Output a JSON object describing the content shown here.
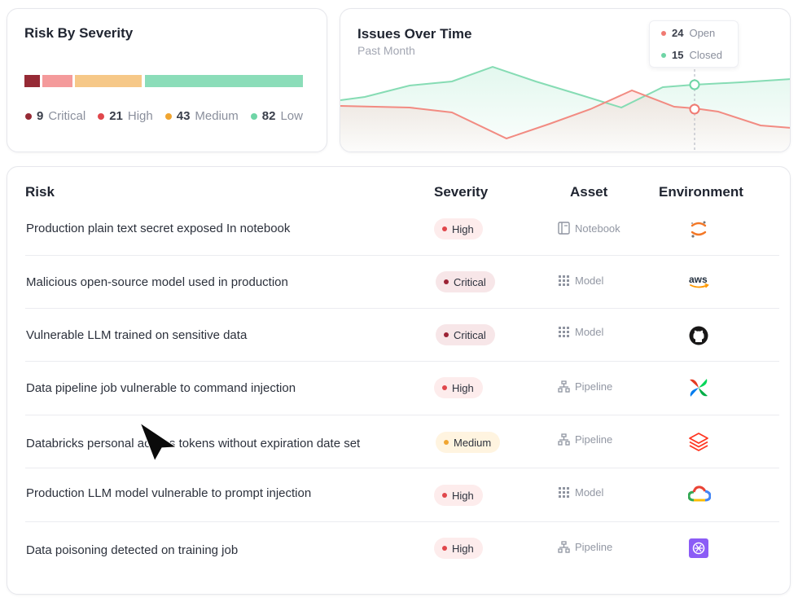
{
  "severity": {
    "title": "Risk By Severity",
    "bars": [
      {
        "name": "critical",
        "color": "#962a35"
      },
      {
        "name": "high",
        "color": "#f49a9b"
      },
      {
        "name": "medium",
        "color": "#f6c888"
      },
      {
        "name": "low",
        "color": "#8bddb9"
      }
    ],
    "legend": [
      {
        "count": "9",
        "label": "Critical",
        "color": "#962a35"
      },
      {
        "count": "21",
        "label": "High",
        "color": "#e0474c"
      },
      {
        "count": "43",
        "label": "Medium",
        "color": "#f0a531"
      },
      {
        "count": "82",
        "label": "Low",
        "color": "#6fd5a6"
      }
    ]
  },
  "issues": {
    "title": "Issues Over Time",
    "subtitle": "Past Month",
    "tooltip": {
      "open_count": "24",
      "open_label": "Open",
      "closed_count": "15",
      "closed_label": "Closed"
    }
  },
  "table": {
    "headers": {
      "risk": "Risk",
      "severity": "Severity",
      "asset": "Asset",
      "environment": "Environment"
    },
    "rows": [
      {
        "risk": "Production plain text secret exposed In notebook",
        "severity": "High",
        "asset": "Notebook",
        "asset_icon": "notebook-icon",
        "env_icon": "jupyter-icon"
      },
      {
        "risk": "Malicious open-source model used in production",
        "severity": "Critical",
        "asset": "Model",
        "asset_icon": "model-icon",
        "env_icon": "aws-icon"
      },
      {
        "risk": "Vulnerable LLM trained on sensitive data",
        "severity": "Critical",
        "asset": "Model",
        "asset_icon": "model-icon",
        "env_icon": "github-icon"
      },
      {
        "risk": "Data pipeline job vulnerable to command injection",
        "severity": "High",
        "asset": "Pipeline",
        "asset_icon": "pipeline-icon",
        "env_icon": "airflow-icon"
      },
      {
        "risk": "Databricks personal access tokens without expiration date set",
        "severity": "Medium",
        "asset": "Pipeline",
        "asset_icon": "pipeline-icon",
        "env_icon": "databricks-icon"
      },
      {
        "risk": "Production LLM model vulnerable to prompt injection",
        "severity": "High",
        "asset": "Model",
        "asset_icon": "model-icon",
        "env_icon": "google-cloud-icon"
      },
      {
        "risk": "Data poisoning detected on training job",
        "severity": "High",
        "asset": "Pipeline",
        "asset_icon": "pipeline-icon",
        "env_icon": "openai-icon"
      }
    ]
  }
}
